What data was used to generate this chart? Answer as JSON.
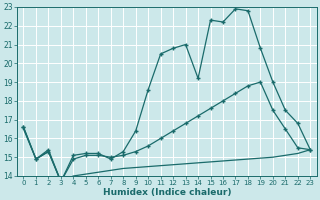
{
  "xlabel": "Humidex (Indice chaleur)",
  "bg_color": "#cce8ea",
  "line_color": "#1a6b6b",
  "grid_color": "#ffffff",
  "xlim": [
    -0.5,
    23.5
  ],
  "ylim": [
    14,
    23
  ],
  "yticks": [
    14,
    15,
    16,
    17,
    18,
    19,
    20,
    21,
    22,
    23
  ],
  "xticks": [
    0,
    1,
    2,
    3,
    4,
    5,
    6,
    7,
    8,
    9,
    10,
    11,
    12,
    13,
    14,
    15,
    16,
    17,
    18,
    19,
    20,
    21,
    22,
    23
  ],
  "line1_x": [
    0,
    1,
    2,
    3,
    4,
    5,
    6,
    7,
    8,
    9,
    10,
    11,
    12,
    13,
    14,
    15,
    16,
    17,
    18,
    19,
    20,
    21,
    22,
    23
  ],
  "line1_y": [
    16.6,
    14.9,
    15.4,
    13.7,
    15.1,
    15.2,
    15.2,
    14.9,
    15.3,
    16.4,
    18.6,
    20.5,
    20.8,
    21.0,
    19.2,
    22.3,
    22.2,
    22.9,
    22.8,
    20.8,
    19.0,
    17.5,
    16.8,
    15.4
  ],
  "line2_x": [
    0,
    1,
    2,
    3,
    4,
    5,
    6,
    7,
    8,
    9,
    10,
    11,
    12,
    13,
    14,
    15,
    16,
    17,
    18,
    19,
    20,
    21,
    22,
    23
  ],
  "line2_y": [
    16.6,
    14.9,
    15.3,
    13.7,
    14.9,
    15.1,
    15.1,
    15.0,
    15.1,
    15.3,
    15.6,
    16.0,
    16.4,
    16.8,
    17.2,
    17.6,
    18.0,
    18.4,
    18.8,
    19.0,
    17.5,
    16.5,
    15.5,
    15.4
  ],
  "line3_x": [
    0,
    1,
    2,
    3,
    4,
    5,
    6,
    7,
    8,
    9,
    10,
    11,
    12,
    13,
    14,
    15,
    16,
    17,
    18,
    19,
    20,
    21,
    22,
    23
  ],
  "line3_y": [
    16.5,
    14.9,
    15.3,
    13.7,
    14.0,
    14.1,
    14.2,
    14.3,
    14.4,
    14.45,
    14.5,
    14.55,
    14.6,
    14.65,
    14.7,
    14.75,
    14.8,
    14.85,
    14.9,
    14.95,
    15.0,
    15.1,
    15.2,
    15.4
  ]
}
